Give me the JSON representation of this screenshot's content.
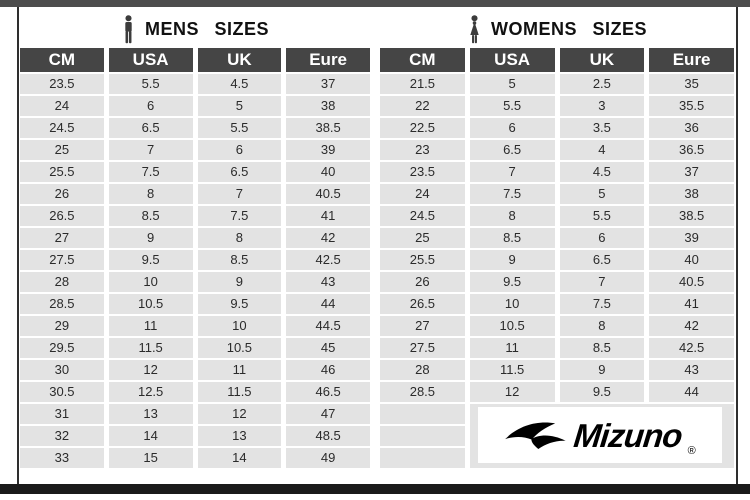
{
  "chart_data": [
    {
      "type": "table",
      "title": "MENS SIZES",
      "columns": [
        "CM",
        "USA",
        "UK",
        "Eure"
      ],
      "rows": [
        [
          "23.5",
          "5.5",
          "4.5",
          "37"
        ],
        [
          "24",
          "6",
          "5",
          "38"
        ],
        [
          "24.5",
          "6.5",
          "5.5",
          "38.5"
        ],
        [
          "25",
          "7",
          "6",
          "39"
        ],
        [
          "25.5",
          "7.5",
          "6.5",
          "40"
        ],
        [
          "26",
          "8",
          "7",
          "40.5"
        ],
        [
          "26.5",
          "8.5",
          "7.5",
          "41"
        ],
        [
          "27",
          "9",
          "8",
          "42"
        ],
        [
          "27.5",
          "9.5",
          "8.5",
          "42.5"
        ],
        [
          "28",
          "10",
          "9",
          "43"
        ],
        [
          "28.5",
          "10.5",
          "9.5",
          "44"
        ],
        [
          "29",
          "11",
          "10",
          "44.5"
        ],
        [
          "29.5",
          "11.5",
          "10.5",
          "45"
        ],
        [
          "30",
          "12",
          "11",
          "46"
        ],
        [
          "30.5",
          "12.5",
          "11.5",
          "46.5"
        ],
        [
          "31",
          "13",
          "12",
          "47"
        ],
        [
          "32",
          "14",
          "13",
          "48.5"
        ],
        [
          "33",
          "15",
          "14",
          "49"
        ]
      ]
    },
    {
      "type": "table",
      "title": "WOMENS SIZES",
      "columns": [
        "CM",
        "USA",
        "UK",
        "Eure"
      ],
      "rows": [
        [
          "21.5",
          "5",
          "2.5",
          "35"
        ],
        [
          "22",
          "5.5",
          "3",
          "35.5"
        ],
        [
          "22.5",
          "6",
          "3.5",
          "36"
        ],
        [
          "23",
          "6.5",
          "4",
          "36.5"
        ],
        [
          "23.5",
          "7",
          "4.5",
          "37"
        ],
        [
          "24",
          "7.5",
          "5",
          "38"
        ],
        [
          "24.5",
          "8",
          "5.5",
          "38.5"
        ],
        [
          "25",
          "8.5",
          "6",
          "39"
        ],
        [
          "25.5",
          "9",
          "6.5",
          "40"
        ],
        [
          "26",
          "9.5",
          "7",
          "40.5"
        ],
        [
          "26.5",
          "10",
          "7.5",
          "41"
        ],
        [
          "27",
          "10.5",
          "8",
          "42"
        ],
        [
          "27.5",
          "11",
          "8.5",
          "42.5"
        ],
        [
          "28",
          "11.5",
          "9",
          "43"
        ],
        [
          "28.5",
          "12",
          "9.5",
          "44"
        ]
      ]
    }
  ],
  "logo": {
    "brand": "Mizuno",
    "registered": "®"
  },
  "colors": {
    "header_bg": "#454545",
    "row_bg": "#e3e3e3",
    "top_bar": "#4d4d4d",
    "bottom_bar": "#1a1a1a",
    "title_text": "#111111",
    "logo_text": "#000000"
  }
}
